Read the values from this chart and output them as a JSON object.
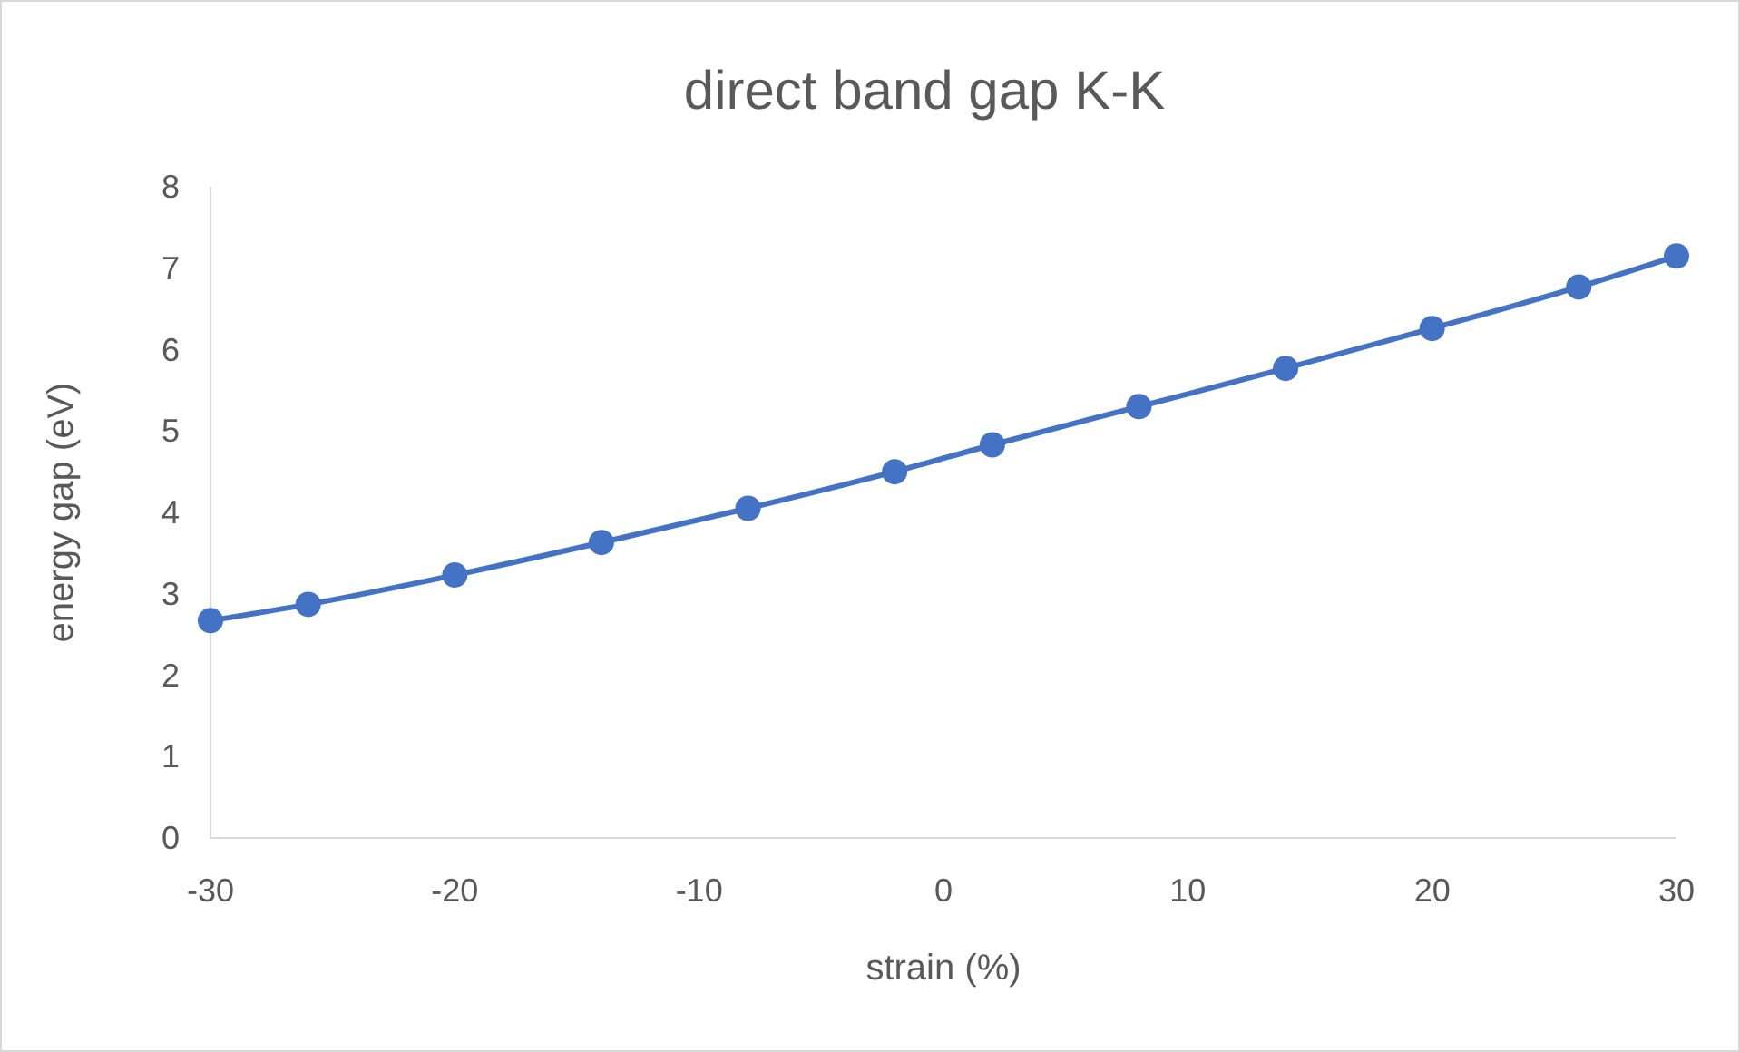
{
  "chart_data": {
    "type": "line",
    "title": "direct band gap K-K",
    "xlabel": "strain (%)",
    "ylabel": "energy gap (eV)",
    "x": [
      -30,
      -26,
      -20,
      -14,
      -8,
      -2,
      2,
      8,
      14,
      20,
      26,
      30
    ],
    "series": [
      {
        "color": "#4472c4",
        "values": [
          2.67,
          2.87,
          3.23,
          3.63,
          4.05,
          4.5,
          4.83,
          5.3,
          5.77,
          6.26,
          6.77,
          7.15
        ]
      }
    ],
    "xlim": [
      -30,
      30
    ],
    "xticks": [
      -30,
      -20,
      -10,
      0,
      10,
      20,
      30
    ],
    "ylim": [
      0,
      8
    ],
    "yticks": [
      0,
      1,
      2,
      3,
      4,
      5,
      6,
      7,
      8
    ],
    "marker": "circle",
    "line_style": "solid"
  }
}
